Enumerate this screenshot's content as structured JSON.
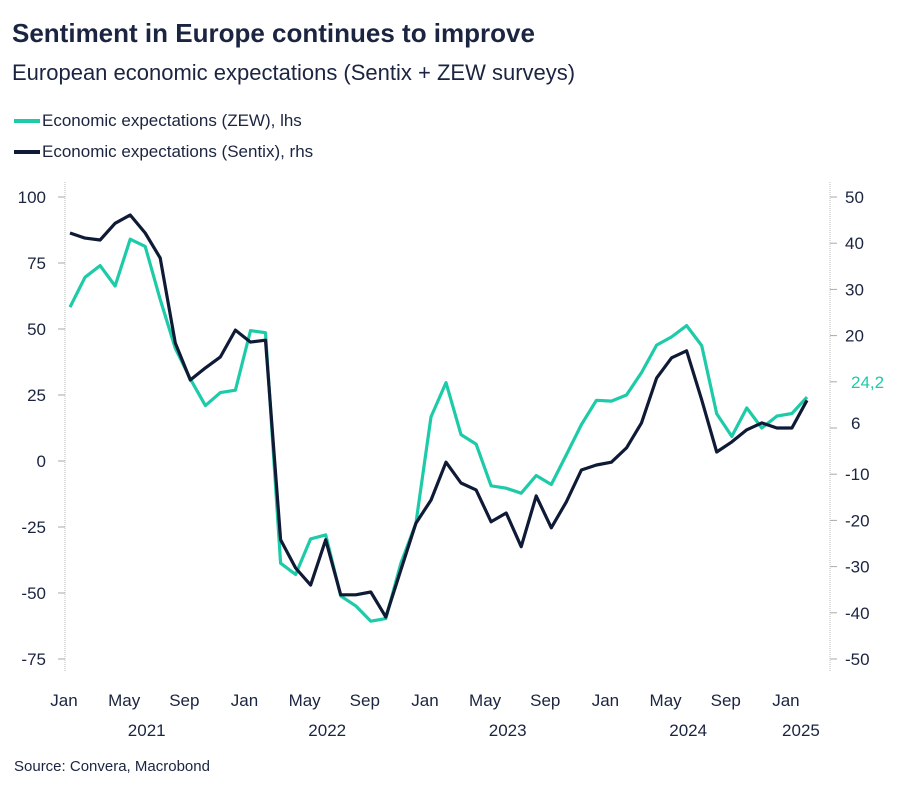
{
  "title": "Sentiment in Europe continues to improve",
  "subtitle": "European economic expectations (Sentix + ZEW surveys)",
  "source": "Source: Convera, Macrobond",
  "chart_data": {
    "type": "line",
    "x_start": "2021-01",
    "x_end": "2025-02",
    "x_ticks": [
      "Jan",
      "May",
      "Sep",
      "Jan",
      "May",
      "Sep",
      "Jan",
      "May",
      "Sep",
      "Jan",
      "May",
      "Sep",
      "Jan"
    ],
    "years": [
      "2021",
      "2022",
      "2023",
      "2024",
      "2025"
    ],
    "left_axis": {
      "range": [
        -75,
        100
      ],
      "ticks": [
        100,
        75,
        50,
        25,
        0,
        -25,
        -50,
        -75
      ]
    },
    "right_axis": {
      "range": [
        -50,
        50
      ],
      "ticks": [
        50,
        40,
        30,
        20,
        -10,
        -20,
        -30,
        -40,
        -50
      ]
    },
    "grid": false,
    "legend_placement": "top-left",
    "series": [
      {
        "name": "Economic expectations (ZEW), lhs",
        "axis": "left",
        "color": "#1ecba8",
        "values": [
          58.3,
          69.6,
          74.0,
          66.3,
          84.0,
          81.3,
          61.2,
          42.7,
          31.1,
          21.0,
          25.9,
          26.8,
          49.4,
          48.6,
          -38.7,
          -43.0,
          -29.5,
          -28.0,
          -51.1,
          -54.9,
          -60.7,
          -59.7,
          -38.7,
          -23.6,
          16.7,
          29.7,
          10.0,
          6.4,
          -9.4,
          -10.3,
          -12.2,
          -5.5,
          -8.9,
          2.3,
          13.8,
          23.0,
          22.7,
          25.0,
          33.5,
          43.9,
          47.0,
          51.3,
          43.7,
          17.9,
          9.3,
          20.1,
          12.5,
          17.0,
          18.0,
          24.2
        ],
        "last_label": "24,2"
      },
      {
        "name": "Economic expectations (Sentix), rhs",
        "axis": "right",
        "color": "#0f1a36",
        "values": [
          42.2,
          41.1,
          40.7,
          44.3,
          46.1,
          42.2,
          36.8,
          18.4,
          10.4,
          13.0,
          15.4,
          21.2,
          18.6,
          19.0,
          -24.2,
          -30.3,
          -34.0,
          -24.2,
          -36.1,
          -36.1,
          -35.5,
          -40.9,
          -30.7,
          -20.6,
          -15.6,
          -7.4,
          -11.9,
          -13.4,
          -20.3,
          -18.4,
          -25.7,
          -14.7,
          -21.6,
          -16.0,
          -9.1,
          -8.0,
          -7.4,
          -4.3,
          1.1,
          10.8,
          15.2,
          16.7,
          6.1,
          -5.2,
          -3.0,
          -0.4,
          1.1,
          0.0,
          0.0,
          6.0
        ],
        "last_label": "6"
      }
    ]
  }
}
